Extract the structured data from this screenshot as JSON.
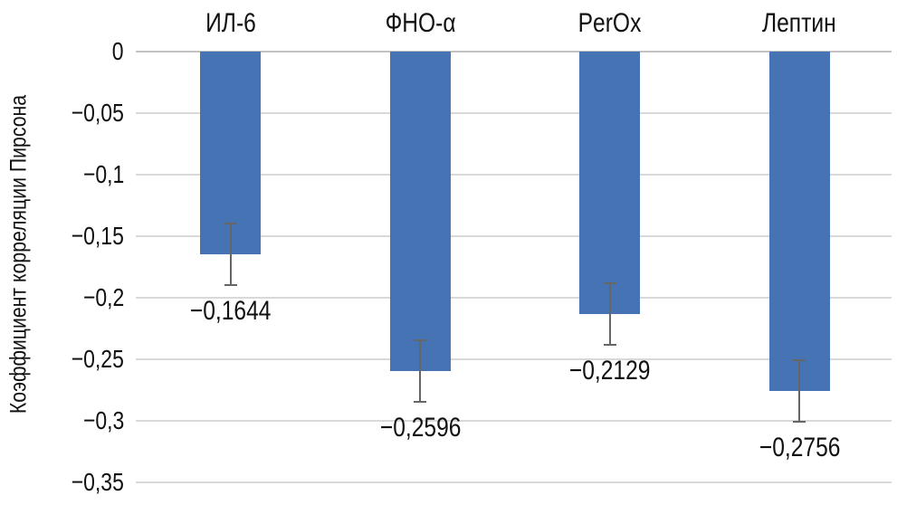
{
  "chart_data": {
    "type": "bar",
    "title": "",
    "xlabel": "",
    "ylabel": "Коэффициент корреляции Пирсона",
    "categories": [
      "ИЛ-6",
      "ФНО-α",
      "PerOx",
      "Лептин"
    ],
    "values": [
      -0.1644,
      -0.2596,
      -0.2129,
      -0.2756
    ],
    "data_labels": [
      "−0,1644",
      "−0,2596",
      "−0,2129",
      "−0,2756"
    ],
    "error_bar": 0.025,
    "ylim": [
      -0.35,
      0
    ],
    "yticks": [
      0,
      -0.05,
      -0.1,
      -0.15,
      -0.2,
      -0.25,
      -0.3,
      -0.35
    ],
    "ytick_labels": [
      "0",
      "−0,05",
      "−0,1",
      "−0,15",
      "−0,2",
      "−0,25",
      "−0,3",
      "−0,35"
    ],
    "grid": true,
    "legend": false,
    "decimal_separator": ",",
    "colors": {
      "bar": "#4573b4",
      "error_bar": "#666666",
      "gridline": "#d9d9d9",
      "zero_line": "#c3c3c3",
      "text": "#111111",
      "background": "#ffffff"
    }
  }
}
